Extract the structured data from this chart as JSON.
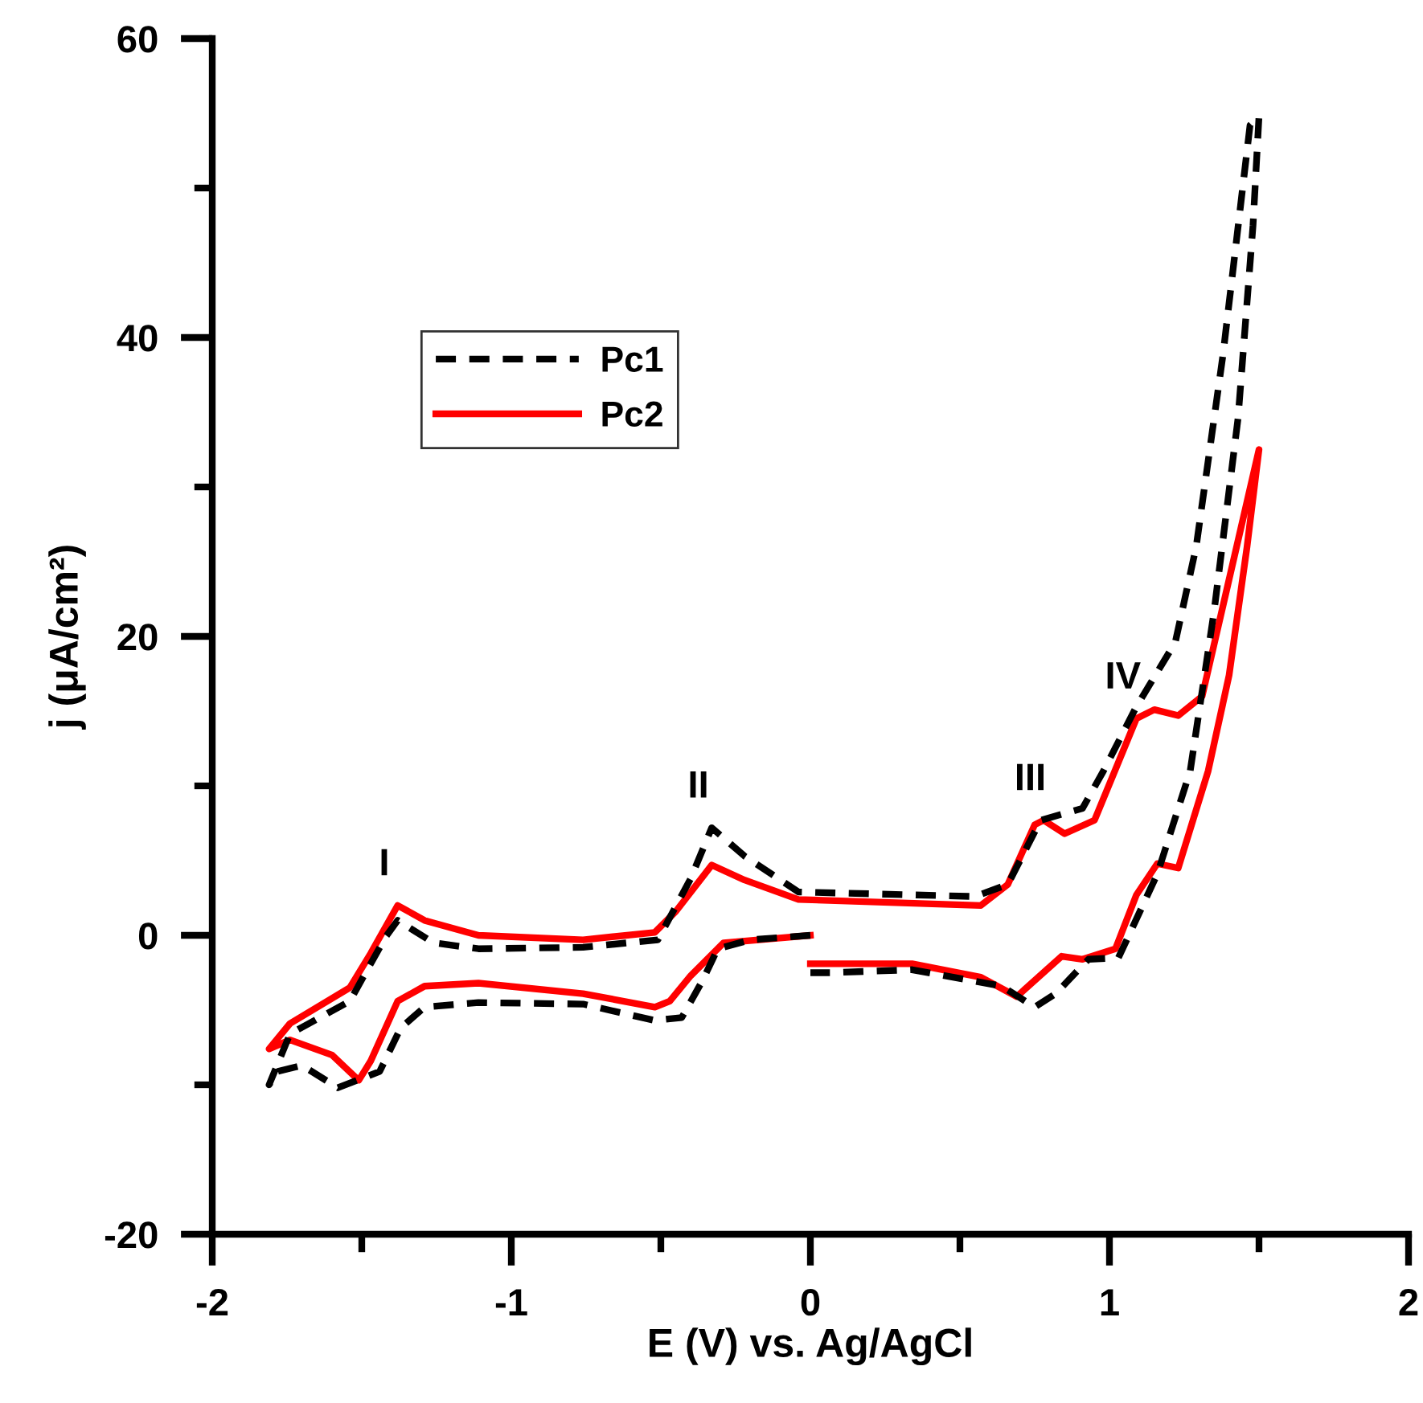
{
  "chart_data": {
    "type": "line",
    "xlabel": "E (V) vs. Ag/AgCl",
    "ylabel": "j (μA/cm²)",
    "xlim": [
      -2,
      2
    ],
    "ylim": [
      -20,
      60
    ],
    "xticks": [
      -2,
      {
        "value": -1.5,
        "label": null
      },
      -1,
      {
        "value": -0.5,
        "label": null
      },
      0,
      {
        "value": 0.5,
        "label": null
      },
      1,
      {
        "value": 1.5,
        "label": null
      },
      2
    ],
    "yticks": [
      -20,
      {
        "value": -10,
        "label": null
      },
      0,
      {
        "value": 10,
        "label": null
      },
      20,
      {
        "value": 30,
        "label": null
      },
      40,
      {
        "value": 50,
        "label": null
      },
      60
    ],
    "grid": false,
    "legend": "top left",
    "marker": "none",
    "annotations": [
      {
        "text": "I",
        "x": -1.38,
        "y": 2.0
      },
      {
        "text": "II",
        "x": -0.33,
        "y": 7.2
      },
      {
        "text": "III",
        "x": 0.78,
        "y": 7.7
      },
      {
        "text": "IV",
        "x": 1.09,
        "y": 14.5
      }
    ],
    "series": [
      {
        "name": "Pc1",
        "color": "#000000",
        "line_style": "dashed",
        "x": [
          0,
          -0.2,
          -0.31,
          -0.36,
          -0.43,
          -0.52,
          -0.76,
          -1.11,
          -1.29,
          -1.37,
          -1.44,
          -1.49,
          -1.58,
          -1.7,
          -1.78,
          -1.81,
          -1.74,
          -1.54,
          -1.42,
          -1.38,
          -1.26,
          -1.11,
          -0.76,
          -0.51,
          -0.4,
          -0.33,
          -0.22,
          -0.04,
          0.55,
          0.66,
          0.77,
          0.91,
          0.98,
          1.09,
          1.22,
          1.29,
          1.38,
          1.47,
          1.5,
          1.48,
          1.43,
          1.35,
          1.27,
          1.16,
          1.03,
          0.93,
          0.82,
          0.75,
          0.64,
          0.34,
          0.07,
          0
        ],
        "values": [
          0,
          -0.3,
          -0.9,
          -3.0,
          -5.5,
          -5.7,
          -4.6,
          -4.5,
          -4.8,
          -6.2,
          -9.1,
          -9.5,
          -10.2,
          -8.7,
          -9.1,
          -10.0,
          -6.6,
          -4.4,
          -0.1,
          1.0,
          -0.5,
          -0.9,
          -0.8,
          -0.3,
          3.8,
          7.2,
          5.3,
          2.9,
          2.6,
          3.4,
          7.7,
          8.5,
          11.0,
          15.3,
          19.6,
          26.0,
          38.9,
          54.2,
          54.8,
          47.5,
          34.6,
          21.7,
          11.0,
          4.1,
          -1.5,
          -1.6,
          -3.9,
          -4.8,
          -3.4,
          -2.3,
          -2.5,
          -2.5
        ]
      },
      {
        "name": "Pc2",
        "color": "#ff0000",
        "line_style": "solid",
        "x": [
          0,
          -0.29,
          -0.4,
          -0.47,
          -0.52,
          -0.76,
          -1.11,
          -1.29,
          -1.38,
          -1.47,
          -1.51,
          -1.6,
          -1.74,
          -1.81,
          -1.74,
          -1.54,
          -1.47,
          -1.38,
          -1.29,
          -1.11,
          -0.76,
          -0.52,
          -0.45,
          -0.33,
          -0.22,
          -0.04,
          0.57,
          0.66,
          0.75,
          0.78,
          0.85,
          0.95,
          1.09,
          1.15,
          1.23,
          1.31,
          1.5,
          1.46,
          1.4,
          1.33,
          1.23,
          1.16,
          1.09,
          1.02,
          0.91,
          0.84,
          0.69,
          0.57,
          0.34,
          0
        ],
        "values": [
          0,
          -0.5,
          -2.7,
          -4.4,
          -4.8,
          -3.9,
          -3.2,
          -3.4,
          -4.4,
          -8.4,
          -9.7,
          -8.0,
          -7.0,
          -7.6,
          -5.9,
          -3.5,
          -1.2,
          2.0,
          1.0,
          0,
          -0.3,
          0.2,
          1.6,
          4.7,
          3.7,
          2.4,
          2.0,
          3.4,
          7.4,
          7.7,
          6.8,
          7.7,
          14.5,
          15.1,
          14.7,
          16.0,
          32.5,
          26.0,
          17.4,
          11.0,
          4.5,
          4.8,
          2.7,
          -0.9,
          -1.6,
          -1.4,
          -4.1,
          -2.8,
          -1.9,
          -1.9
        ]
      }
    ]
  }
}
